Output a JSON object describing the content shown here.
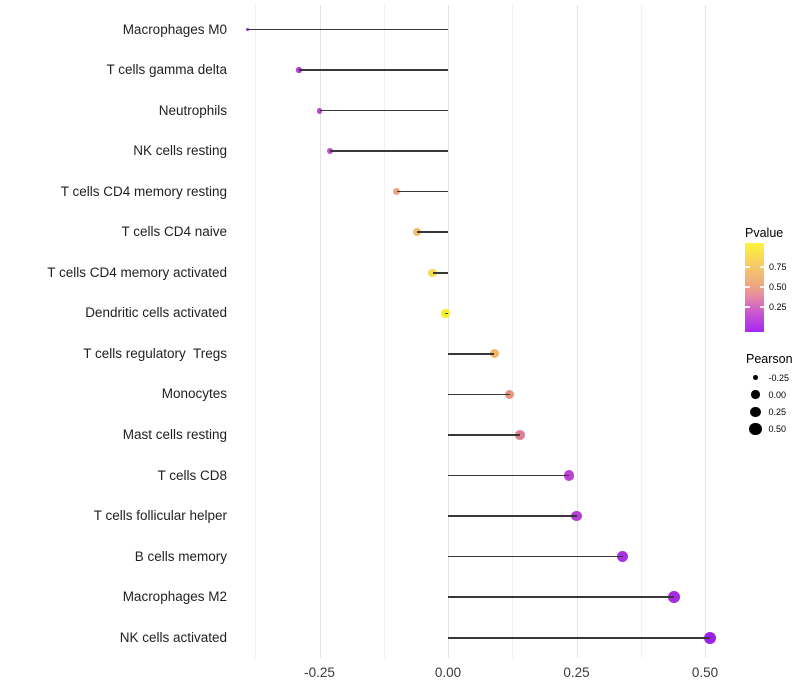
{
  "chart_data": {
    "type": "lollipop",
    "orientation": "horizontal",
    "title": "",
    "xlabel": "",
    "ylabel": "",
    "baseline": 0,
    "x_range": [
      -0.41,
      0.55
    ],
    "x_ticks": [
      {
        "label": "-0.25",
        "value": -0.25
      },
      {
        "label": "0.00",
        "value": 0.0
      },
      {
        "label": "0.25",
        "value": 0.25
      },
      {
        "label": "0.50",
        "value": 0.5
      }
    ],
    "grid": {
      "major": [
        -0.25,
        0.0,
        0.25,
        0.5
      ],
      "minor": [
        -0.375,
        -0.125,
        0.125,
        0.375
      ]
    },
    "categories": [
      "Macrophages M0",
      "T cells gamma delta",
      "Neutrophils",
      "NK cells resting",
      "T cells CD4 memory resting",
      "T cells CD4 naive",
      "T cells CD4 memory activated",
      "Dendritic cells activated",
      "T cells regulatory  Tregs",
      "Monocytes",
      "Mast cells resting",
      "T cells CD8",
      "T cells follicular helper",
      "B cells memory",
      "Macrophages M2",
      "NK cells activated"
    ],
    "series": [
      {
        "name": "Pearson",
        "values": [
          -0.39,
          -0.29,
          -0.25,
          -0.23,
          -0.1,
          -0.06,
          -0.03,
          -0.005,
          0.09,
          0.12,
          0.14,
          0.235,
          0.25,
          0.34,
          0.44,
          0.51
        ]
      },
      {
        "name": "Pvalue",
        "values": [
          0.08,
          0.1,
          0.12,
          0.14,
          0.5,
          0.63,
          0.8,
          0.95,
          0.62,
          0.47,
          0.38,
          0.13,
          0.12,
          0.06,
          0.04,
          0.02
        ]
      }
    ],
    "point_colors": [
      "#9A2CE3",
      "#B23BD9",
      "#BC42D3",
      "#C44BCF",
      "#EDA47E",
      "#F2BE74",
      "#F2DE55",
      "#F8EE21",
      "#F2B46A",
      "#E8947F",
      "#DB8193",
      "#BC3FD6",
      "#B83BDB",
      "#A92FE2",
      "#A52BE4",
      "#9D20E9"
    ],
    "legend": {
      "pvalue": {
        "title": "Pvalue",
        "ticks": [
          {
            "label": "0.75",
            "value": 0.75
          },
          {
            "label": "0.50",
            "value": 0.5
          },
          {
            "label": "0.25",
            "value": 0.25
          }
        ],
        "gradient_stops": [
          {
            "pos": 0,
            "color": "#A826F2"
          },
          {
            "pos": 16,
            "color": "#C04AD9"
          },
          {
            "pos": 30,
            "color": "#D96DBE"
          },
          {
            "pos": 42,
            "color": "#E98F9E"
          },
          {
            "pos": 50,
            "color": "#EDA185"
          },
          {
            "pos": 62,
            "color": "#F2B775"
          },
          {
            "pos": 75,
            "color": "#F7CB67"
          },
          {
            "pos": 88,
            "color": "#FAE24C"
          },
          {
            "pos": 100,
            "color": "#FBF43C"
          }
        ]
      },
      "pearson": {
        "title": "Pearson",
        "items": [
          {
            "label": "-0.25",
            "value": -0.25
          },
          {
            "label": "0.00",
            "value": 0.0
          },
          {
            "label": "0.25",
            "value": 0.25
          },
          {
            "label": "0.50",
            "value": 0.5
          }
        ]
      }
    }
  },
  "colors": {
    "background": "#FFFFFF",
    "stem": "#383838",
    "grid_major": "#E3E3E3",
    "grid_minor": "#F0F0F0",
    "axis_text": "#3A3A3A",
    "legend_dot": "#000000"
  }
}
